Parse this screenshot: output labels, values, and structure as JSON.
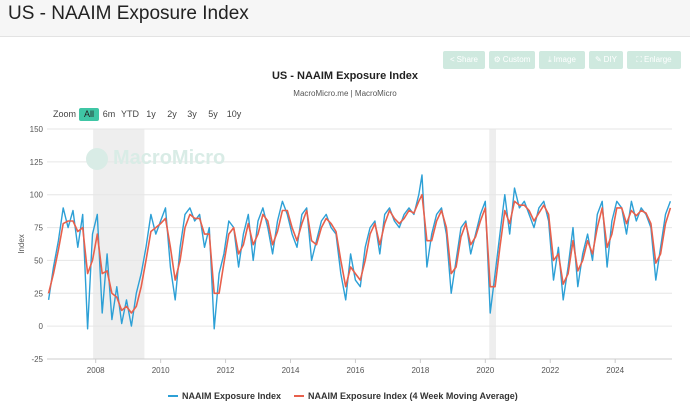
{
  "header": {
    "title": "US - NAAIM Exposure Index"
  },
  "toolbar": {
    "share": "Share",
    "custom": "Custom",
    "image": "Image",
    "diy": "DIY",
    "enlarge": "Enlarge"
  },
  "range_selector": {
    "label": "Zoom",
    "buttons": [
      "All",
      "6m",
      "YTD",
      "1y",
      "2y",
      "3y",
      "5y",
      "10y"
    ],
    "active": "All"
  },
  "watermark": "MacroMicro",
  "colors": {
    "series1": "#2da0d6",
    "series2": "#e8604c",
    "recession": "#eeeeee",
    "accent": "#3fc6a5"
  },
  "chart_data": {
    "type": "line",
    "title": "US - NAAIM Exposure Index",
    "subtitle": "MacroMicro.me | MacroMicro",
    "ylabel": "Index",
    "ylim": [
      -25,
      150
    ],
    "yticks": [
      -25,
      0,
      25,
      50,
      75,
      100,
      125,
      150
    ],
    "xlim": [
      2006.5,
      2025.75
    ],
    "xticks": [
      2008,
      2010,
      2012,
      2014,
      2016,
      2018,
      2020,
      2022,
      2024
    ],
    "grid": true,
    "legend_position": "bottom",
    "shaded_periods": [
      [
        2007.92,
        2009.5
      ],
      [
        2020.12,
        2020.33
      ]
    ],
    "series": [
      {
        "name": "NAAIM Exposure Index",
        "color": "#2da0d6",
        "points": [
          [
            2006.55,
            20
          ],
          [
            2006.7,
            45
          ],
          [
            2006.85,
            65
          ],
          [
            2007.0,
            90
          ],
          [
            2007.15,
            75
          ],
          [
            2007.3,
            88
          ],
          [
            2007.45,
            60
          ],
          [
            2007.6,
            85
          ],
          [
            2007.75,
            -2
          ],
          [
            2007.9,
            70
          ],
          [
            2008.05,
            85
          ],
          [
            2008.2,
            10
          ],
          [
            2008.35,
            55
          ],
          [
            2008.5,
            5
          ],
          [
            2008.65,
            30
          ],
          [
            2008.8,
            2
          ],
          [
            2008.95,
            20
          ],
          [
            2009.1,
            0
          ],
          [
            2009.25,
            25
          ],
          [
            2009.4,
            40
          ],
          [
            2009.55,
            60
          ],
          [
            2009.7,
            85
          ],
          [
            2009.85,
            70
          ],
          [
            2010.0,
            80
          ],
          [
            2010.15,
            90
          ],
          [
            2010.3,
            45
          ],
          [
            2010.45,
            20
          ],
          [
            2010.6,
            60
          ],
          [
            2010.75,
            85
          ],
          [
            2010.9,
            90
          ],
          [
            2011.05,
            80
          ],
          [
            2011.2,
            85
          ],
          [
            2011.35,
            60
          ],
          [
            2011.5,
            75
          ],
          [
            2011.65,
            -2
          ],
          [
            2011.8,
            40
          ],
          [
            2011.95,
            55
          ],
          [
            2012.1,
            80
          ],
          [
            2012.25,
            75
          ],
          [
            2012.4,
            45
          ],
          [
            2012.55,
            70
          ],
          [
            2012.7,
            85
          ],
          [
            2012.85,
            50
          ],
          [
            2013.0,
            80
          ],
          [
            2013.15,
            90
          ],
          [
            2013.3,
            75
          ],
          [
            2013.45,
            55
          ],
          [
            2013.6,
            80
          ],
          [
            2013.75,
            95
          ],
          [
            2013.9,
            85
          ],
          [
            2014.05,
            70
          ],
          [
            2014.2,
            60
          ],
          [
            2014.35,
            85
          ],
          [
            2014.5,
            90
          ],
          [
            2014.65,
            50
          ],
          [
            2014.8,
            65
          ],
          [
            2014.95,
            80
          ],
          [
            2015.1,
            85
          ],
          [
            2015.25,
            75
          ],
          [
            2015.4,
            70
          ],
          [
            2015.55,
            40
          ],
          [
            2015.7,
            20
          ],
          [
            2015.85,
            55
          ],
          [
            2016.0,
            35
          ],
          [
            2016.15,
            30
          ],
          [
            2016.3,
            60
          ],
          [
            2016.45,
            75
          ],
          [
            2016.6,
            80
          ],
          [
            2016.75,
            55
          ],
          [
            2016.9,
            85
          ],
          [
            2017.05,
            90
          ],
          [
            2017.2,
            80
          ],
          [
            2017.35,
            75
          ],
          [
            2017.5,
            85
          ],
          [
            2017.65,
            90
          ],
          [
            2017.8,
            85
          ],
          [
            2017.95,
            100
          ],
          [
            2018.05,
            115
          ],
          [
            2018.2,
            45
          ],
          [
            2018.35,
            70
          ],
          [
            2018.5,
            85
          ],
          [
            2018.65,
            90
          ],
          [
            2018.8,
            70
          ],
          [
            2018.95,
            25
          ],
          [
            2019.1,
            50
          ],
          [
            2019.25,
            75
          ],
          [
            2019.4,
            80
          ],
          [
            2019.55,
            55
          ],
          [
            2019.7,
            70
          ],
          [
            2019.85,
            85
          ],
          [
            2020.0,
            95
          ],
          [
            2020.15,
            10
          ],
          [
            2020.3,
            40
          ],
          [
            2020.45,
            70
          ],
          [
            2020.6,
            100
          ],
          [
            2020.75,
            70
          ],
          [
            2020.9,
            105
          ],
          [
            2021.05,
            90
          ],
          [
            2021.2,
            95
          ],
          [
            2021.35,
            85
          ],
          [
            2021.5,
            75
          ],
          [
            2021.65,
            90
          ],
          [
            2021.8,
            95
          ],
          [
            2021.95,
            80
          ],
          [
            2022.1,
            35
          ],
          [
            2022.25,
            60
          ],
          [
            2022.4,
            20
          ],
          [
            2022.55,
            45
          ],
          [
            2022.7,
            75
          ],
          [
            2022.85,
            30
          ],
          [
            2023.0,
            55
          ],
          [
            2023.15,
            70
          ],
          [
            2023.3,
            50
          ],
          [
            2023.45,
            85
          ],
          [
            2023.6,
            95
          ],
          [
            2023.75,
            45
          ],
          [
            2023.9,
            80
          ],
          [
            2024.05,
            95
          ],
          [
            2024.2,
            90
          ],
          [
            2024.35,
            70
          ],
          [
            2024.5,
            95
          ],
          [
            2024.65,
            80
          ],
          [
            2024.8,
            90
          ],
          [
            2024.95,
            85
          ],
          [
            2025.1,
            75
          ],
          [
            2025.25,
            35
          ],
          [
            2025.4,
            60
          ],
          [
            2025.55,
            85
          ],
          [
            2025.7,
            95
          ]
        ]
      },
      {
        "name": "NAAIM Exposure Index (4 Week Moving Average)",
        "color": "#e8604c",
        "points": [
          [
            2006.55,
            25
          ],
          [
            2006.7,
            40
          ],
          [
            2006.85,
            58
          ],
          [
            2007.0,
            78
          ],
          [
            2007.15,
            80
          ],
          [
            2007.3,
            80
          ],
          [
            2007.45,
            72
          ],
          [
            2007.6,
            75
          ],
          [
            2007.75,
            40
          ],
          [
            2007.9,
            50
          ],
          [
            2008.05,
            70
          ],
          [
            2008.2,
            40
          ],
          [
            2008.35,
            42
          ],
          [
            2008.5,
            25
          ],
          [
            2008.65,
            22
          ],
          [
            2008.8,
            12
          ],
          [
            2008.95,
            15
          ],
          [
            2009.1,
            10
          ],
          [
            2009.25,
            15
          ],
          [
            2009.4,
            30
          ],
          [
            2009.55,
            50
          ],
          [
            2009.7,
            72
          ],
          [
            2009.85,
            75
          ],
          [
            2010.0,
            78
          ],
          [
            2010.15,
            82
          ],
          [
            2010.3,
            60
          ],
          [
            2010.45,
            35
          ],
          [
            2010.6,
            50
          ],
          [
            2010.75,
            75
          ],
          [
            2010.9,
            85
          ],
          [
            2011.05,
            82
          ],
          [
            2011.2,
            82
          ],
          [
            2011.35,
            70
          ],
          [
            2011.5,
            70
          ],
          [
            2011.65,
            25
          ],
          [
            2011.8,
            25
          ],
          [
            2011.95,
            48
          ],
          [
            2012.1,
            70
          ],
          [
            2012.25,
            75
          ],
          [
            2012.4,
            55
          ],
          [
            2012.55,
            62
          ],
          [
            2012.7,
            78
          ],
          [
            2012.85,
            62
          ],
          [
            2013.0,
            70
          ],
          [
            2013.15,
            85
          ],
          [
            2013.3,
            80
          ],
          [
            2013.45,
            62
          ],
          [
            2013.6,
            72
          ],
          [
            2013.75,
            88
          ],
          [
            2013.9,
            88
          ],
          [
            2014.05,
            75
          ],
          [
            2014.2,
            65
          ],
          [
            2014.35,
            78
          ],
          [
            2014.5,
            88
          ],
          [
            2014.65,
            65
          ],
          [
            2014.8,
            62
          ],
          [
            2014.95,
            75
          ],
          [
            2015.1,
            82
          ],
          [
            2015.25,
            78
          ],
          [
            2015.4,
            72
          ],
          [
            2015.55,
            50
          ],
          [
            2015.7,
            30
          ],
          [
            2015.85,
            45
          ],
          [
            2016.0,
            40
          ],
          [
            2016.15,
            35
          ],
          [
            2016.3,
            50
          ],
          [
            2016.45,
            70
          ],
          [
            2016.6,
            78
          ],
          [
            2016.75,
            62
          ],
          [
            2016.9,
            78
          ],
          [
            2017.05,
            88
          ],
          [
            2017.2,
            82
          ],
          [
            2017.35,
            78
          ],
          [
            2017.5,
            82
          ],
          [
            2017.65,
            88
          ],
          [
            2017.8,
            86
          ],
          [
            2017.95,
            95
          ],
          [
            2018.05,
            100
          ],
          [
            2018.2,
            65
          ],
          [
            2018.35,
            65
          ],
          [
            2018.5,
            80
          ],
          [
            2018.65,
            88
          ],
          [
            2018.8,
            75
          ],
          [
            2018.95,
            40
          ],
          [
            2019.1,
            45
          ],
          [
            2019.25,
            68
          ],
          [
            2019.4,
            78
          ],
          [
            2019.55,
            62
          ],
          [
            2019.7,
            68
          ],
          [
            2019.85,
            80
          ],
          [
            2020.0,
            90
          ],
          [
            2020.15,
            30
          ],
          [
            2020.3,
            30
          ],
          [
            2020.45,
            60
          ],
          [
            2020.6,
            88
          ],
          [
            2020.75,
            78
          ],
          [
            2020.9,
            95
          ],
          [
            2021.05,
            92
          ],
          [
            2021.2,
            92
          ],
          [
            2021.35,
            88
          ],
          [
            2021.5,
            80
          ],
          [
            2021.65,
            86
          ],
          [
            2021.8,
            92
          ],
          [
            2021.95,
            85
          ],
          [
            2022.1,
            50
          ],
          [
            2022.25,
            55
          ],
          [
            2022.4,
            32
          ],
          [
            2022.55,
            40
          ],
          [
            2022.7,
            65
          ],
          [
            2022.85,
            42
          ],
          [
            2023.0,
            50
          ],
          [
            2023.15,
            65
          ],
          [
            2023.3,
            55
          ],
          [
            2023.45,
            75
          ],
          [
            2023.6,
            90
          ],
          [
            2023.75,
            60
          ],
          [
            2023.9,
            70
          ],
          [
            2024.05,
            90
          ],
          [
            2024.2,
            90
          ],
          [
            2024.35,
            78
          ],
          [
            2024.5,
            88
          ],
          [
            2024.65,
            84
          ],
          [
            2024.8,
            88
          ],
          [
            2024.95,
            86
          ],
          [
            2025.1,
            78
          ],
          [
            2025.25,
            48
          ],
          [
            2025.4,
            55
          ],
          [
            2025.55,
            78
          ],
          [
            2025.7,
            90
          ]
        ]
      }
    ]
  }
}
